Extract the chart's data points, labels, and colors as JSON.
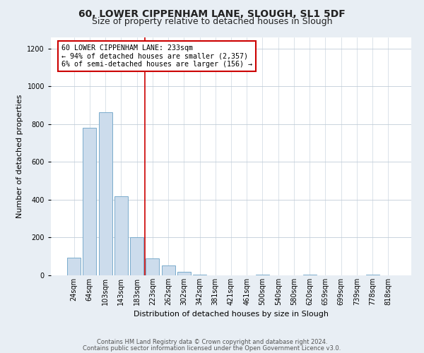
{
  "title": "60, LOWER CIPPENHAM LANE, SLOUGH, SL1 5DF",
  "subtitle": "Size of property relative to detached houses in Slough",
  "xlabel": "Distribution of detached houses by size in Slough",
  "ylabel": "Number of detached properties",
  "bar_labels": [
    "24sqm",
    "64sqm",
    "103sqm",
    "143sqm",
    "183sqm",
    "223sqm",
    "262sqm",
    "302sqm",
    "342sqm",
    "381sqm",
    "421sqm",
    "461sqm",
    "500sqm",
    "540sqm",
    "580sqm",
    "620sqm",
    "659sqm",
    "699sqm",
    "739sqm",
    "778sqm",
    "818sqm"
  ],
  "bar_values": [
    95,
    780,
    862,
    418,
    203,
    90,
    52,
    20,
    5,
    0,
    0,
    0,
    5,
    0,
    0,
    5,
    0,
    0,
    0,
    5,
    0
  ],
  "bar_color": "#ccdcec",
  "bar_edgecolor": "#7aabcc",
  "vline_x_idx": 5,
  "vline_color": "#cc0000",
  "ylim": [
    0,
    1260
  ],
  "yticks": [
    0,
    200,
    400,
    600,
    800,
    1000,
    1200
  ],
  "annotation_line1": "60 LOWER CIPPENHAM LANE: 233sqm",
  "annotation_line2": "← 94% of detached houses are smaller (2,357)",
  "annotation_line3": "6% of semi-detached houses are larger (156) →",
  "footer_line1": "Contains HM Land Registry data © Crown copyright and database right 2024.",
  "footer_line2": "Contains public sector information licensed under the Open Government Licence v3.0.",
  "background_color": "#e8eef4",
  "plot_background": "#ffffff",
  "grid_color": "#c0ccd8",
  "title_fontsize": 10,
  "subtitle_fontsize": 9,
  "ylabel_fontsize": 8,
  "xlabel_fontsize": 8,
  "tick_fontsize": 7,
  "footer_fontsize": 6
}
